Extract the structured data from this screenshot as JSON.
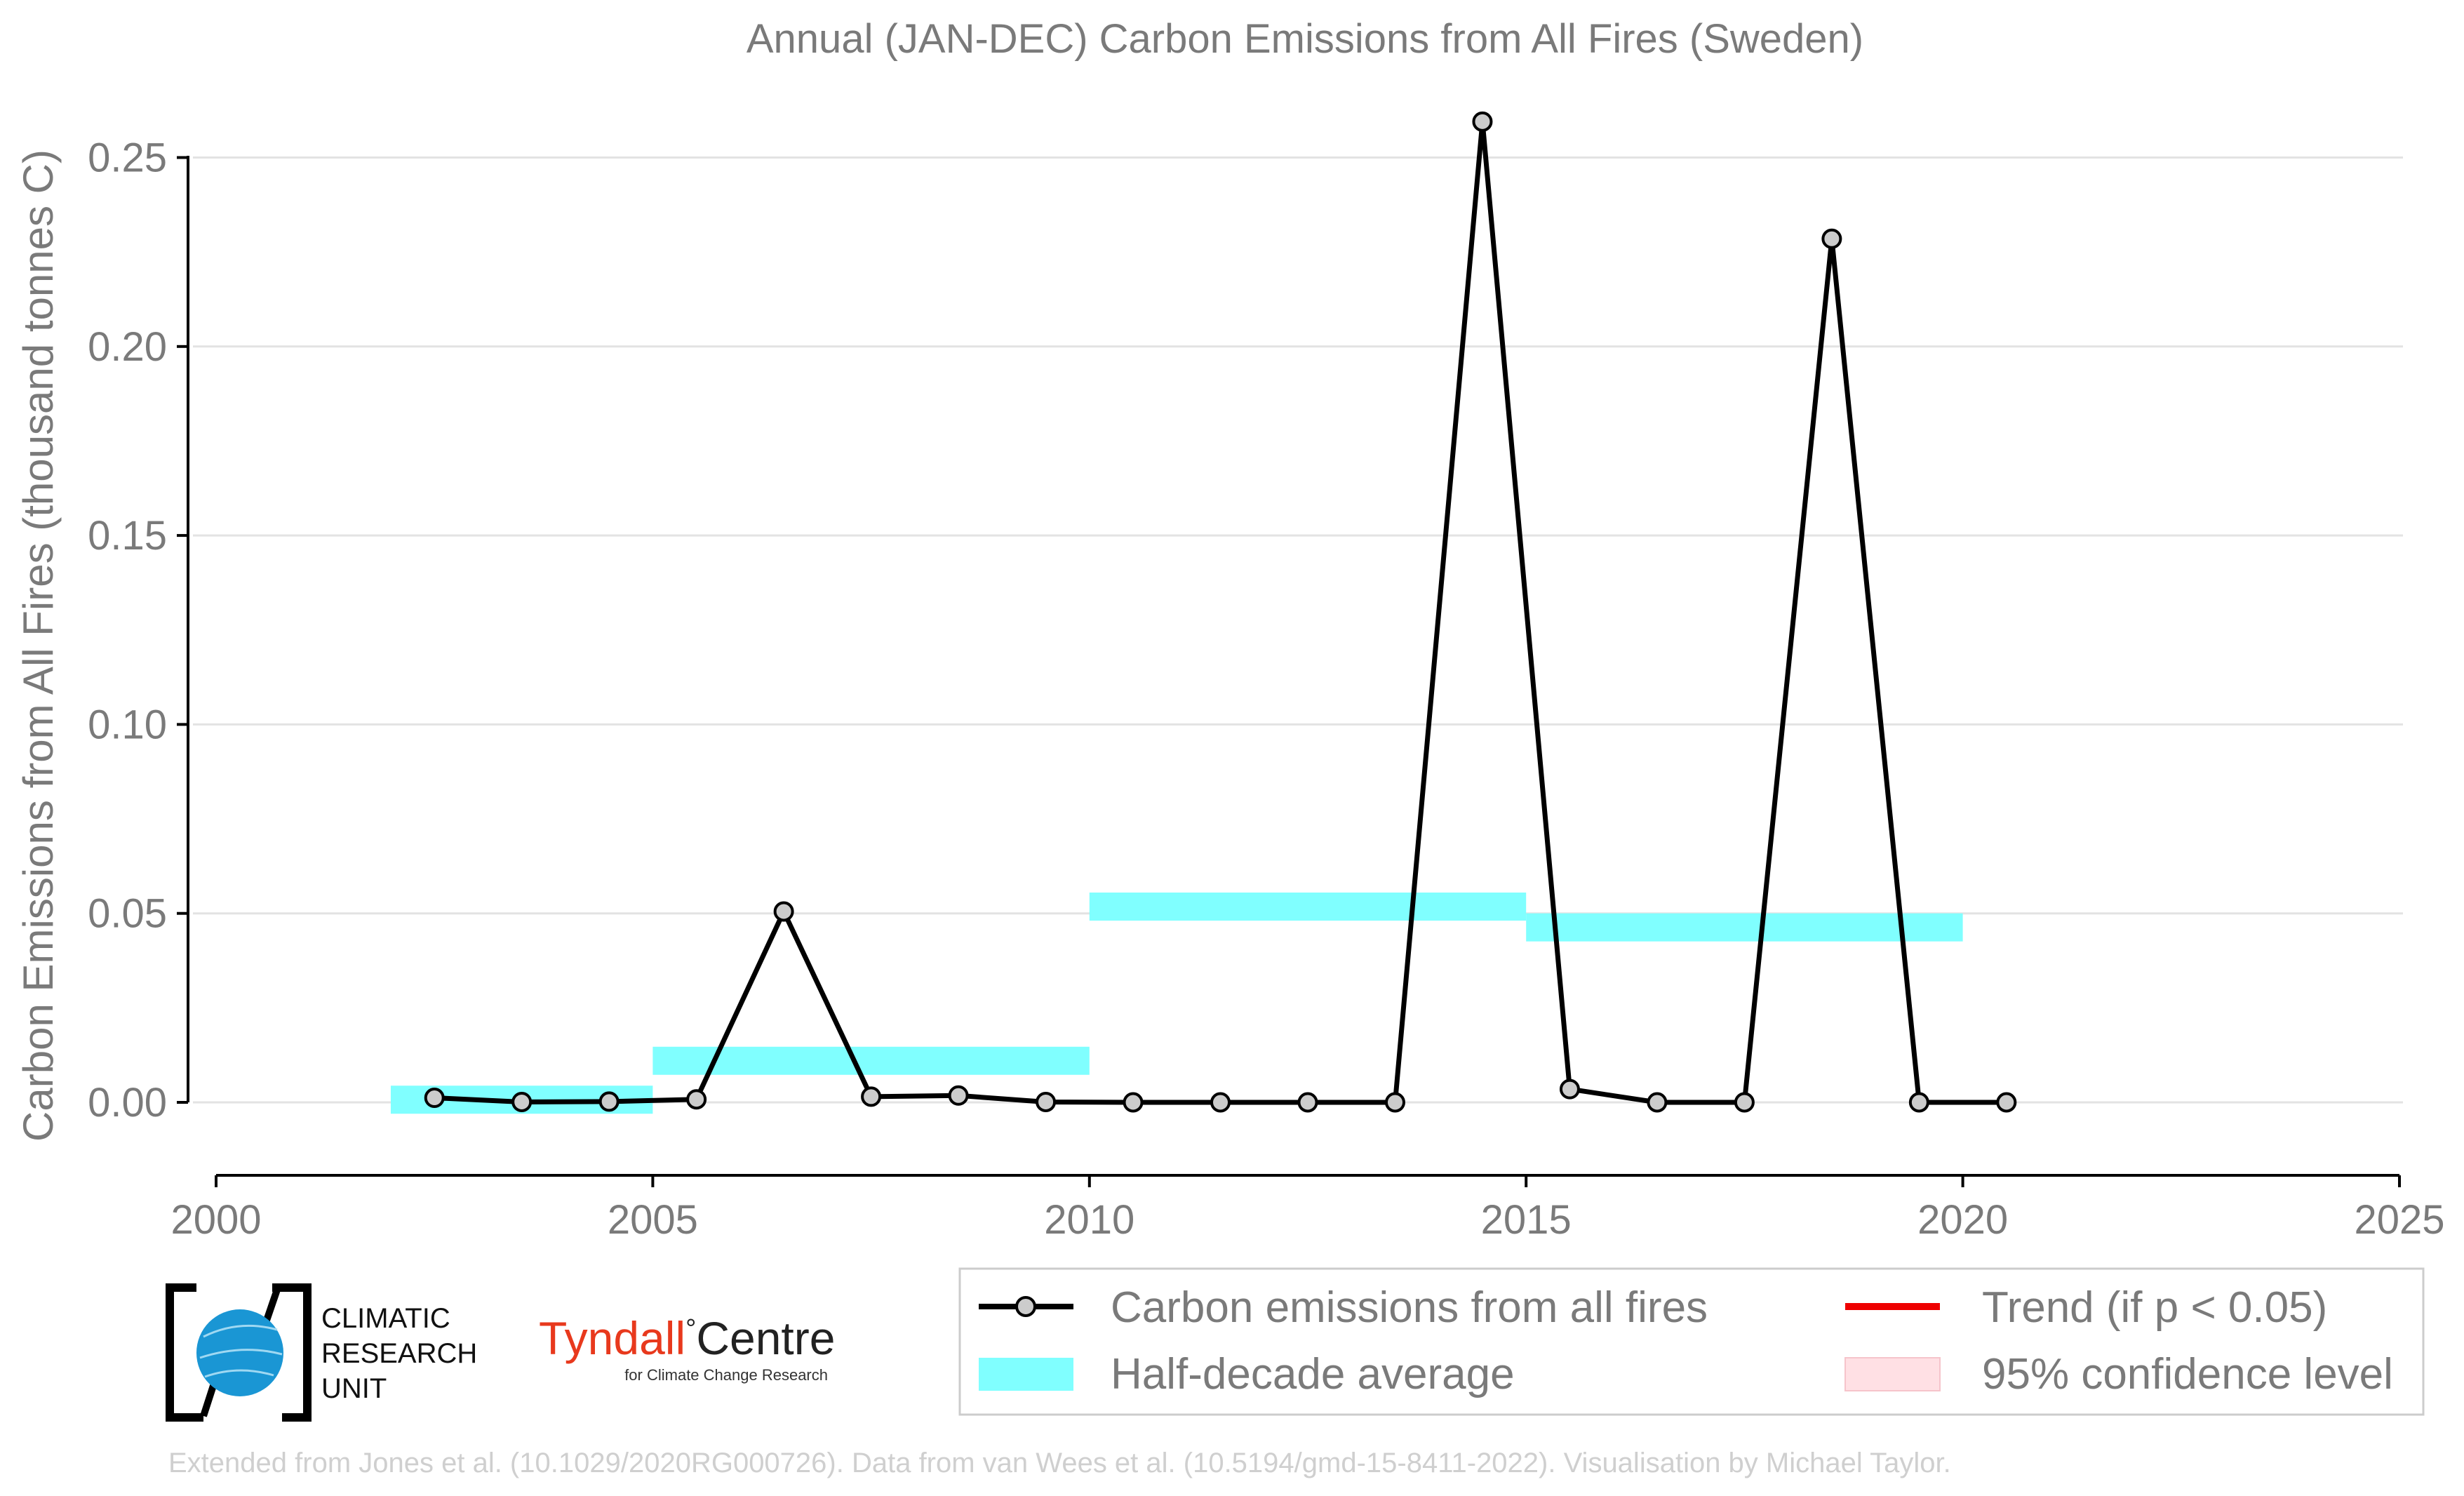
{
  "chart_data": {
    "type": "line",
    "title": "Annual (JAN-DEC) Carbon Emissions from All Fires (Sweden)",
    "xlabel": "",
    "ylabel": "Carbon Emissions from All Fires (thousand tonnes C)",
    "xlim": [
      2000,
      2025
    ],
    "ylim": [
      -0.02,
      0.27
    ],
    "xticks": [
      2000,
      2005,
      2010,
      2015,
      2020,
      2025
    ],
    "yticks": [
      0.0,
      0.05,
      0.1,
      0.15,
      0.2,
      0.25
    ],
    "ytick_labels": [
      "0.00",
      "0.05",
      "0.10",
      "0.15",
      "0.20",
      "0.25"
    ],
    "grid": "horizontal",
    "series": [
      {
        "name": "Carbon emissions from all fires",
        "color": "#000000",
        "marker_color": "#cccccc",
        "points": [
          {
            "x": 2002.5,
            "y": 0.0012
          },
          {
            "x": 2003.5,
            "y": 0.0001
          },
          {
            "x": 2004.5,
            "y": 0.0002
          },
          {
            "x": 2005.5,
            "y": 0.0008
          },
          {
            "x": 2006.5,
            "y": 0.0505
          },
          {
            "x": 2007.5,
            "y": 0.0015
          },
          {
            "x": 2008.5,
            "y": 0.0018
          },
          {
            "x": 2009.5,
            "y": 0.0001
          },
          {
            "x": 2010.5,
            "y": 0.0
          },
          {
            "x": 2011.5,
            "y": 0.0
          },
          {
            "x": 2012.5,
            "y": 0.0
          },
          {
            "x": 2013.5,
            "y": 0.0
          },
          {
            "x": 2014.5,
            "y": 0.2595
          },
          {
            "x": 2015.5,
            "y": 0.0035
          },
          {
            "x": 2016.5,
            "y": 0.0
          },
          {
            "x": 2017.5,
            "y": 0.0
          },
          {
            "x": 2018.5,
            "y": 0.2285
          },
          {
            "x": 2019.5,
            "y": 0.0
          },
          {
            "x": 2020.5,
            "y": 0.0
          }
        ]
      }
    ],
    "half_decade_average": {
      "name": "Half-decade average",
      "color": "#80ffff",
      "bands": [
        {
          "x0": 2002,
          "x1": 2005,
          "y": 0.0007
        },
        {
          "x0": 2005,
          "x1": 2010,
          "y": 0.011
        },
        {
          "x0": 2010,
          "x1": 2015,
          "y": 0.0518
        },
        {
          "x0": 2015,
          "x1": 2020,
          "y": 0.0463
        }
      ]
    },
    "legend": {
      "placement": "bottom-right, below plot",
      "entries": [
        {
          "label": "Carbon emissions from all fires",
          "kind": "line-marker",
          "color": "#000000"
        },
        {
          "label": "Trend (if p < 0.05)",
          "kind": "line",
          "color": "#ee0000"
        },
        {
          "label": "Half-decade average",
          "kind": "patch",
          "color": "#80ffff"
        },
        {
          "label": "95% confidence level",
          "kind": "patch",
          "color": "#ffe0e4"
        }
      ]
    }
  },
  "logos": {
    "cru": {
      "lines": [
        "CLIMATIC",
        "RESEARCH",
        "UNIT"
      ],
      "globe_color": "#1a96d4"
    },
    "tyndall": {
      "name": "Tyndall",
      "degree": "°",
      "name2": "Centre",
      "subtitle": "for Climate Change Research",
      "color": "#e8391d"
    }
  },
  "credit": "Extended from Jones et al. (10.1029/2020RG000726). Data from van Wees et al. (10.5194/gmd-15-8411-2022). Visualisation by Michael Taylor."
}
